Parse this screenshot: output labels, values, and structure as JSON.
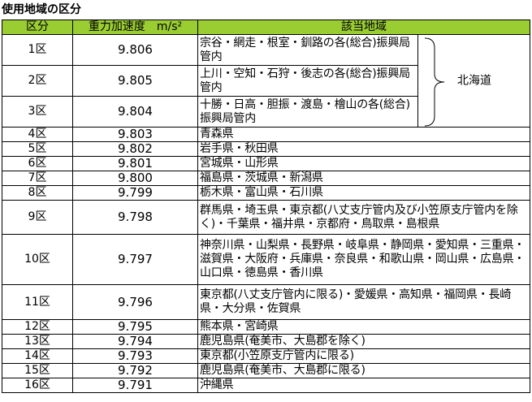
{
  "title": "使用地域の区分",
  "headers": {
    "zone": "区分",
    "gravity": "重力加速度　m/s²",
    "region": "該当地域"
  },
  "hokkaido_label": "北海道",
  "rows": [
    {
      "zone": "1区",
      "value": "9.806",
      "region": "宗谷・網走・根室・釧路の各(総合)振興局管内"
    },
    {
      "zone": "2区",
      "value": "9.805",
      "region": "上川・空知・石狩・後志の各(総合)振興局管内"
    },
    {
      "zone": "3区",
      "value": "9.804",
      "region": "十勝・日高・胆振・渡島・檜山の各(総合)振興局管内"
    },
    {
      "zone": "4区",
      "value": "9.803",
      "region": "青森県"
    },
    {
      "zone": "5区",
      "value": "9.802",
      "region": "岩手県・秋田県"
    },
    {
      "zone": "6区",
      "value": "9.801",
      "region": "宮城県・山形県"
    },
    {
      "zone": "7区",
      "value": "9.800",
      "region": "福島県・茨城県・新潟県"
    },
    {
      "zone": "8区",
      "value": "9.799",
      "region": "栃木県・富山県・石川県"
    },
    {
      "zone": "9区",
      "value": "9.798",
      "region": "群馬県・埼玉県・東京都(八丈支庁管内及び小笠原支庁管内を除く)・千葉県・福井県・京都府・鳥取県・島根県"
    },
    {
      "zone": "10区",
      "value": "9.797",
      "region": "神奈川県・山梨県・長野県・岐阜県・静岡県・愛知県・三重県・滋賀県・大阪府・兵庫県・奈良県・和歌山県・岡山県・広島県・山口県・徳島県・香川県"
    },
    {
      "zone": "11区",
      "value": "9.796",
      "region": "東京都(八丈支庁管内に限る)・愛媛県・高知県・福岡県・長崎県・大分県・佐賀県"
    },
    {
      "zone": "12区",
      "value": "9.795",
      "region": "熊本県・宮崎県"
    },
    {
      "zone": "13区",
      "value": "9.794",
      "region": "鹿児島県(奄美市、大島郡を除く)"
    },
    {
      "zone": "14区",
      "value": "9.793",
      "region": "東京都(小笠原支庁管内に限る)"
    },
    {
      "zone": "15区",
      "value": "9.792",
      "region": "鹿児島県(奄美市、大島郡に限る)"
    },
    {
      "zone": "16区",
      "value": "9.791",
      "region": "沖縄県"
    }
  ]
}
